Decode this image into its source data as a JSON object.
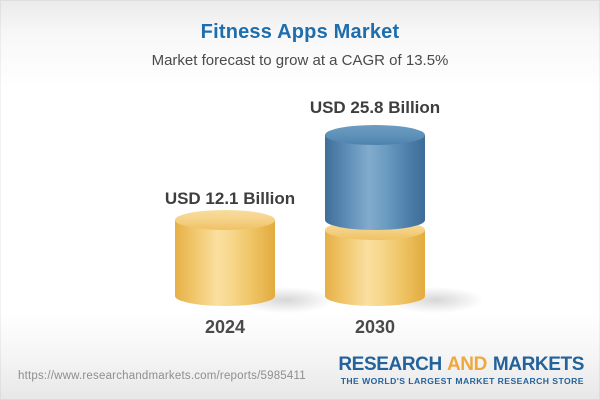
{
  "header": {
    "title": "Fitness Apps Market",
    "subtitle": "Market forecast to grow at a CAGR of 13.5%"
  },
  "chart_data": {
    "type": "bar",
    "style": "3d-cylinder",
    "categories": [
      "2024",
      "2030"
    ],
    "values": [
      12.1,
      25.8
    ],
    "value_labels": [
      "USD 12.1 Billion",
      "USD 25.8 Billion"
    ],
    "unit": "USD Billion",
    "cagr_percent": 13.5,
    "title": "Fitness Apps Market",
    "subtitle": "Market forecast to grow at a CAGR of 13.5%",
    "xlabel": "",
    "ylabel": "",
    "legend": "none",
    "grid": false,
    "colors": {
      "base_segment": "#F0C363",
      "growth_segment": "#5B8FB8",
      "title_text": "#1E6DAD",
      "label_text": "#3E3E3E"
    },
    "notes": "2030 bar is stacked: gold base equals 2024 value, blue segment shows forecast growth"
  },
  "footer": {
    "url": "https://www.researchandmarkets.com/reports/5985411",
    "logo": {
      "part1": "RESEARCH",
      "part2": "AND",
      "part3": "MARKETS",
      "tagline": "THE WORLD'S LARGEST MARKET RESEARCH STORE",
      "blue": "#24629B",
      "gold": "#EFA73E"
    }
  }
}
